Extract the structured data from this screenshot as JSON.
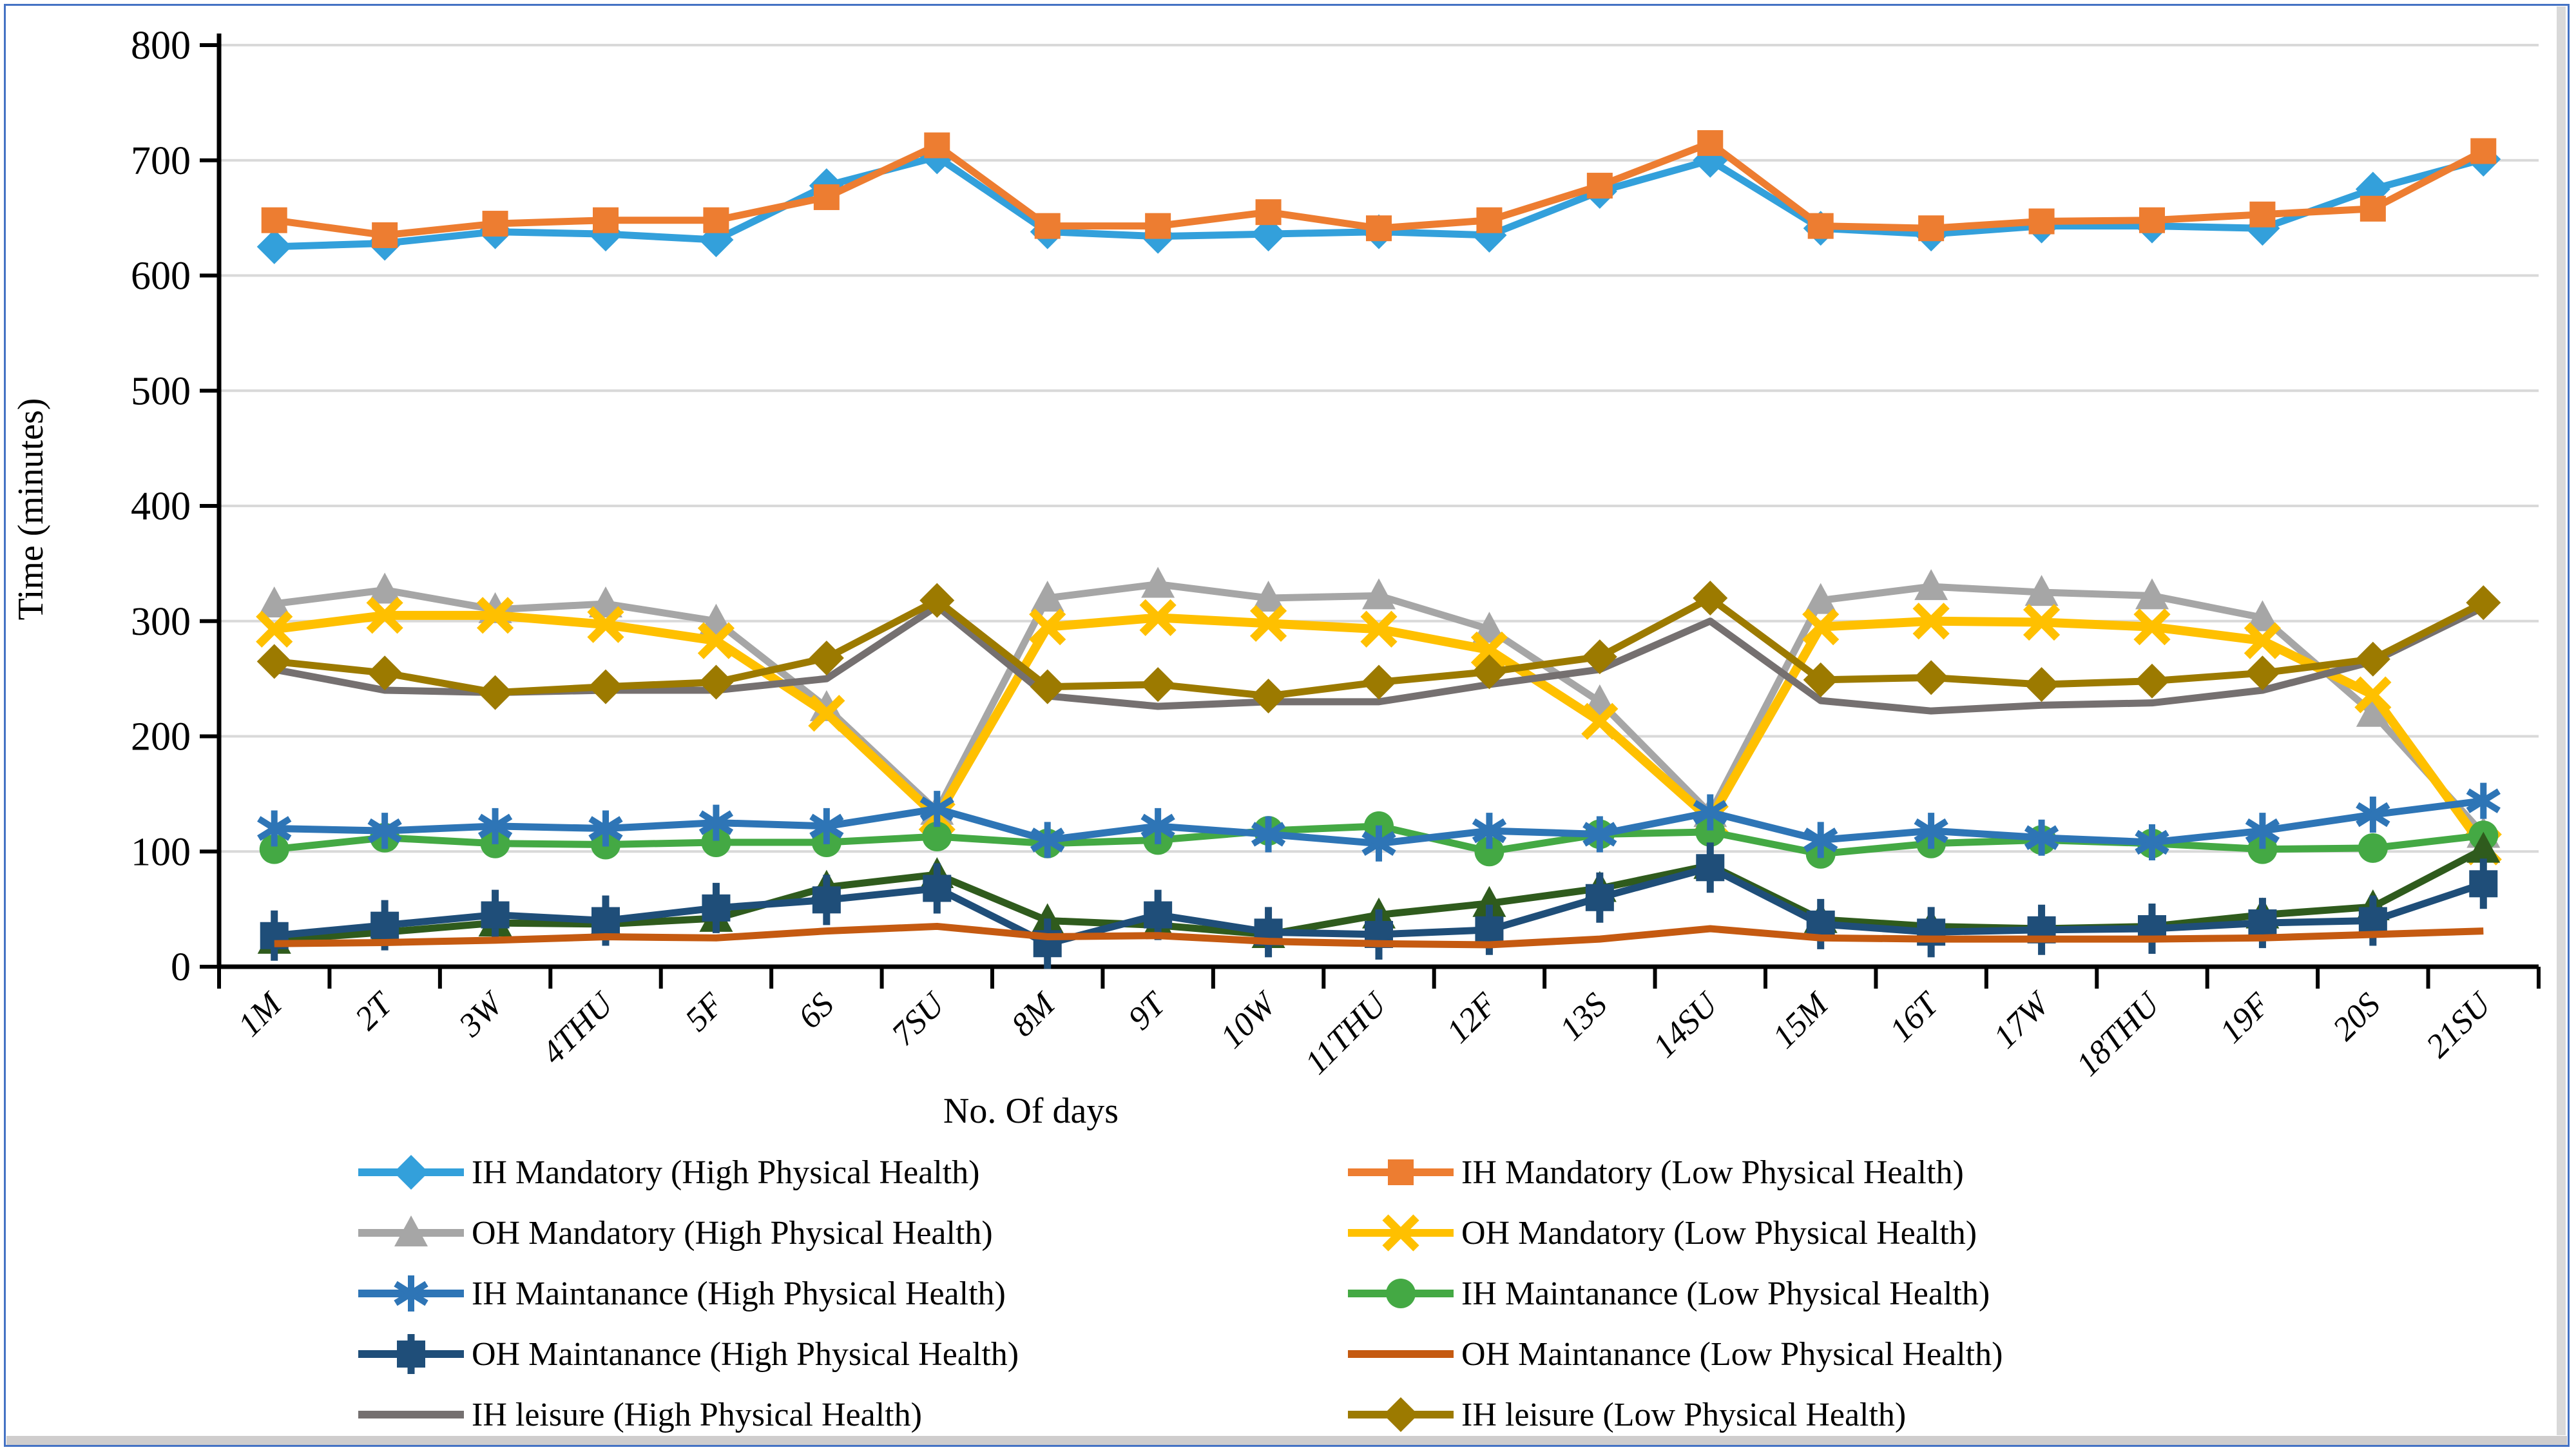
{
  "figure": {
    "background": "#FFFFFF",
    "border_color": "#4472C4",
    "bottom_band_color": "#CFCDCD",
    "right_band_color": "#D9D9D9"
  },
  "chart_data": {
    "type": "line",
    "title": "",
    "xlabel": "No. Of days",
    "ylabel": "Time (minutes)",
    "ylim": [
      0,
      800
    ],
    "ytick_interval": 100,
    "ytick_labels": [
      "0",
      "100",
      "200",
      "300",
      "400",
      "500",
      "600",
      "700",
      "800"
    ],
    "grid": "horizontal",
    "gridline_color": "#D9D9D9",
    "axis_color": "#000000",
    "legend_position": "bottom, 2 columns",
    "categories": [
      "1M",
      "2T",
      "3W",
      "4THU",
      "5F",
      "6S",
      "7SU",
      "8M",
      "9T",
      "10W",
      "11THU",
      "12F",
      "13S",
      "14SU",
      "15M",
      "16T",
      "17W",
      "18THU",
      "19F",
      "20S",
      "21SU"
    ],
    "series": [
      {
        "name": "IH Mandatory (High Physical Health)",
        "color": "#33A0DB",
        "marker": "diamond",
        "in_legend": true,
        "values": [
          625,
          628,
          638,
          636,
          631,
          678,
          703,
          638,
          634,
          636,
          638,
          635,
          673,
          700,
          641,
          636,
          643,
          643,
          641,
          675,
          701
        ]
      },
      {
        "name": "IH Mandatory (Low Physical Health)",
        "color": "#ED7D31",
        "marker": "square",
        "in_legend": true,
        "values": [
          648,
          635,
          645,
          648,
          648,
          668,
          713,
          643,
          643,
          655,
          641,
          648,
          678,
          715,
          643,
          641,
          647,
          648,
          653,
          658,
          708
        ]
      },
      {
        "name": "OH Mandatory (High Physical Health)",
        "color": "#A6A6A6",
        "marker": "triangle",
        "in_legend": true,
        "values": [
          315,
          327,
          310,
          315,
          300,
          225,
          135,
          320,
          332,
          320,
          322,
          293,
          230,
          133,
          318,
          330,
          325,
          322,
          303,
          220,
          115
        ]
      },
      {
        "name": "OH Mandatory (Low Physical Health)",
        "color": "#FFC000",
        "marker": "x",
        "in_legend": true,
        "values": [
          293,
          305,
          305,
          297,
          283,
          220,
          130,
          295,
          303,
          298,
          293,
          275,
          213,
          128,
          295,
          300,
          299,
          295,
          283,
          236,
          104
        ]
      },
      {
        "name": "IH Maintanance (High Physical Health)",
        "color": "#2E75B6",
        "marker": "asterisk",
        "in_legend": true,
        "values": [
          120,
          118,
          122,
          120,
          125,
          122,
          137,
          110,
          122,
          115,
          107,
          118,
          115,
          134,
          110,
          118,
          112,
          108,
          118,
          132,
          144
        ]
      },
      {
        "name": "IH Maintanance (Low Physical Health)",
        "color": "#44A944",
        "marker": "circle",
        "in_legend": true,
        "values": [
          102,
          112,
          107,
          106,
          108,
          108,
          113,
          107,
          110,
          118,
          122,
          100,
          115,
          117,
          98,
          107,
          110,
          107,
          102,
          103,
          114
        ]
      },
      {
        "name": "OH Maintanance (High Physical Health)",
        "color": "#1F4E79",
        "marker": "plus",
        "in_legend": true,
        "values": [
          27,
          36,
          45,
          40,
          51,
          58,
          68,
          20,
          45,
          30,
          28,
          32,
          60,
          86,
          37,
          30,
          32,
          33,
          38,
          40,
          72
        ]
      },
      {
        "name": "OH Maintanance (Low Physical Health)",
        "color": "#C55A11",
        "marker": "none",
        "in_legend": true,
        "values": [
          20,
          21,
          23,
          26,
          25,
          31,
          35,
          26,
          27,
          22,
          20,
          19,
          24,
          33,
          25,
          24,
          24,
          24,
          25,
          28,
          31
        ]
      },
      {
        "name": "IH leisure (High Physical Health)",
        "color": "#757070",
        "marker": "none",
        "in_legend": true,
        "values": [
          258,
          240,
          238,
          240,
          240,
          250,
          313,
          235,
          226,
          230,
          230,
          245,
          258,
          300,
          231,
          222,
          227,
          229,
          240,
          265,
          312
        ]
      },
      {
        "name": "IH leisure (Low Physical Health)",
        "color": "#9C7A00",
        "marker": "diamond",
        "in_legend": true,
        "values": [
          265,
          255,
          238,
          243,
          247,
          268,
          318,
          243,
          245,
          235,
          247,
          256,
          269,
          320,
          249,
          251,
          245,
          248,
          255,
          267,
          316
        ]
      },
      {
        "name": "",
        "color": "#2F5B1D",
        "marker": "triangle",
        "in_legend": false,
        "values": [
          23,
          30,
          38,
          37,
          42,
          69,
          80,
          40,
          36,
          28,
          45,
          55,
          68,
          88,
          41,
          35,
          33,
          35,
          45,
          52,
          102
        ]
      }
    ],
    "draw_order": [
      2,
      3,
      8,
      9,
      5,
      4,
      10,
      6,
      7,
      0,
      1
    ]
  }
}
